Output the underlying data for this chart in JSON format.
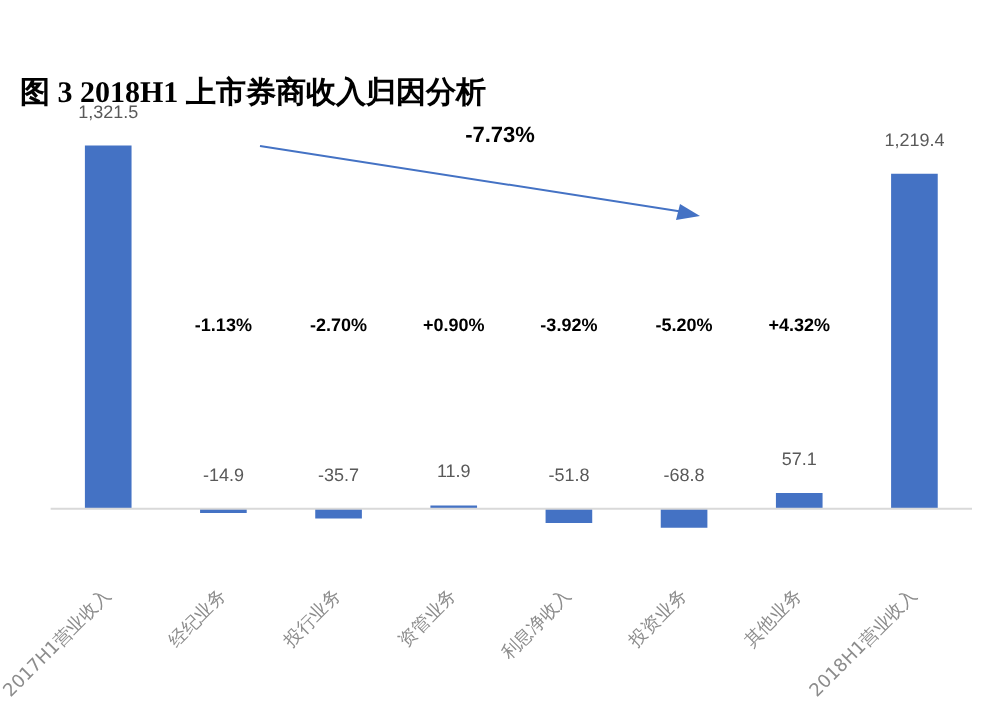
{
  "chart_data": {
    "type": "bar",
    "title": "图 3 2018H1 上市券商收入归因分析",
    "categories": [
      "2017H1营业收入",
      "经纪业务",
      "投行业务",
      "资管业务",
      "利息净收入",
      "投资业务",
      "其他业务",
      "2018H1营业收入"
    ],
    "values": [
      1321.5,
      -14.9,
      -35.7,
      11.9,
      -51.8,
      -68.8,
      57.1,
      1219.4
    ],
    "color": "#4472c4",
    "value_labels": [
      "1,321.5",
      "-14.9",
      "-35.7",
      "11.9",
      "-51.8",
      "-68.8",
      "57.1",
      "1,219.4"
    ],
    "grid": false,
    "legend": false,
    "tick_labels": "x",
    "annotations": [
      "-7.73%",
      "-1.13%",
      "-2.70%",
      "+0.90%",
      "-3.92%",
      "-5.20%",
      "+4.32%"
    ]
  }
}
